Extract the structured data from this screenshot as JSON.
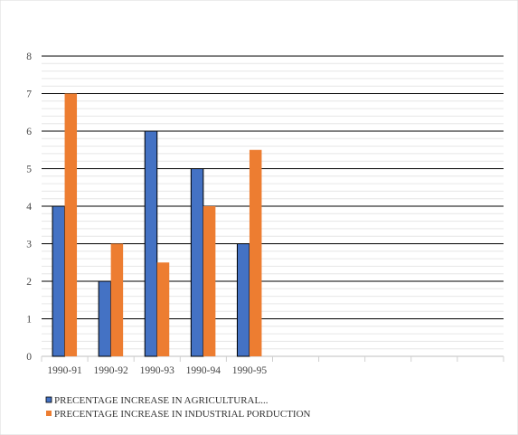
{
  "chart_data": {
    "type": "bar",
    "categories": [
      "1990-91",
      "1990-92",
      "1990-93",
      "1990-94",
      "1990-95",
      "",
      "",
      "",
      "",
      ""
    ],
    "series": [
      {
        "name": "PRECENTAGE  INCREASE IN AGRICULTURAL...",
        "color": "#4472c4",
        "values": [
          4,
          2,
          6,
          5,
          3,
          null,
          null,
          null,
          null,
          null
        ]
      },
      {
        "name": "PRECENTAGE INCREASE IN INDUSTRIAL PORDUCTION",
        "color": "#ed7d31",
        "values": [
          7,
          3,
          2.5,
          4,
          5.5,
          null,
          null,
          null,
          null,
          null
        ]
      }
    ],
    "yticks": [
      "0",
      "1",
      "2",
      "3",
      "4",
      "5",
      "6",
      "7",
      "8"
    ],
    "ylim": [
      0,
      8
    ],
    "grid": true,
    "legend_position": "bottom-left",
    "title": "",
    "xlabel": "",
    "ylabel": ""
  }
}
